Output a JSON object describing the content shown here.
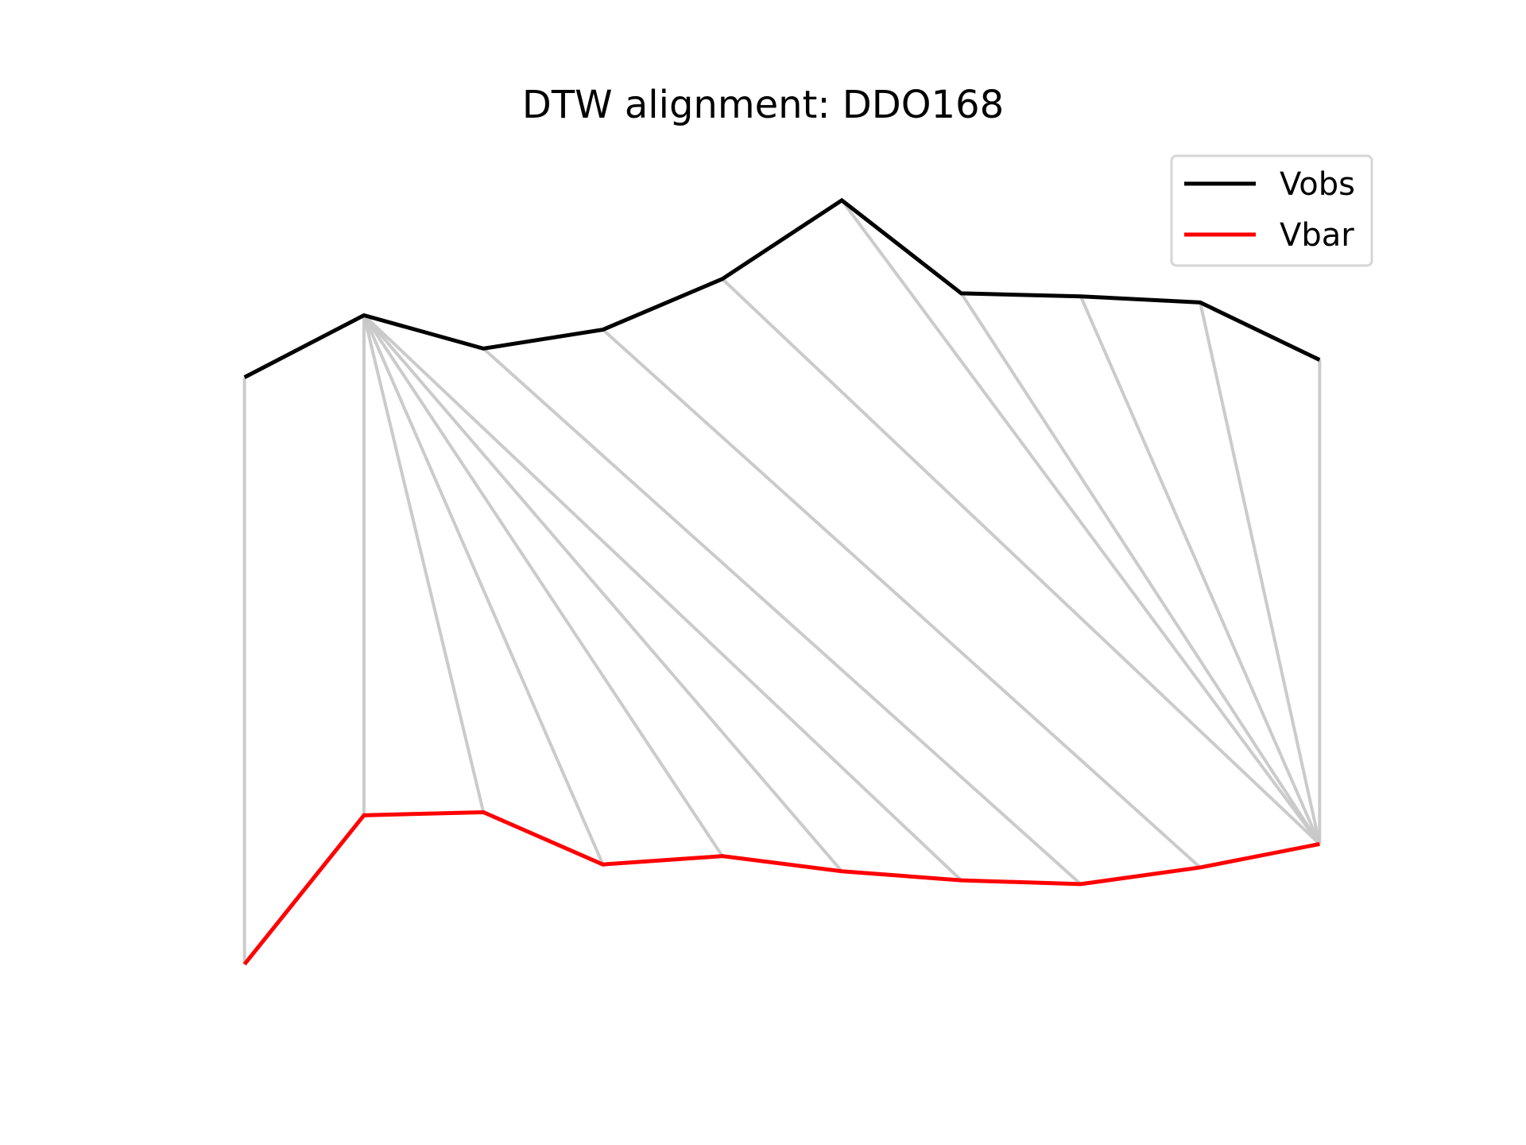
{
  "chart_data": {
    "type": "line",
    "title": "DTW alignment: DDO168",
    "xlabel": "",
    "ylabel": "",
    "axes_visible": false,
    "grid": false,
    "legend_position": "top-right",
    "x": [
      0,
      1,
      2,
      3,
      4,
      5,
      6,
      7,
      8,
      9
    ],
    "series": [
      {
        "name": "Vobs",
        "color": "#000000",
        "values": [
          2.32,
          3.14,
          2.7,
          2.95,
          3.62,
          4.66,
          3.43,
          3.39,
          3.31,
          2.55
        ]
      },
      {
        "name": "Vbar",
        "color": "#ff0000",
        "values": [
          -5.44,
          -3.47,
          -3.43,
          -4.12,
          -4.01,
          -4.21,
          -4.33,
          -4.38,
          -4.16,
          -3.85
        ]
      }
    ],
    "ylim": [
      -6.0,
      5.5
    ],
    "alignment_color": "#c8c8c8",
    "alignment_pairs": [
      [
        0,
        0
      ],
      [
        1,
        1
      ],
      [
        1,
        2
      ],
      [
        1,
        3
      ],
      [
        1,
        4
      ],
      [
        1,
        5
      ],
      [
        1,
        6
      ],
      [
        2,
        7
      ],
      [
        3,
        8
      ],
      [
        4,
        9
      ],
      [
        5,
        9
      ],
      [
        6,
        9
      ],
      [
        7,
        9
      ],
      [
        8,
        9
      ],
      [
        9,
        9
      ]
    ]
  }
}
